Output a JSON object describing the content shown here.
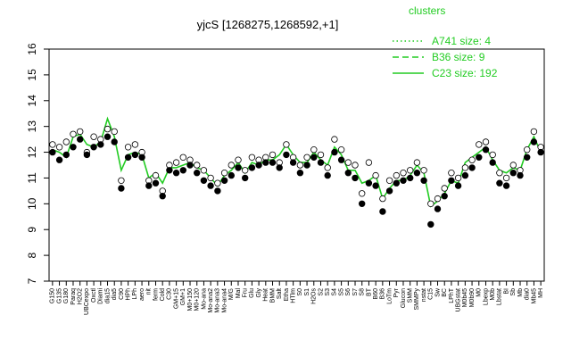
{
  "chart_data": {
    "type": "line",
    "title": "yjcS [1268275,1268592,+1]",
    "xlabel": "",
    "ylabel": "",
    "ylim": [
      7,
      16
    ],
    "yticks": [
      7,
      8,
      9,
      10,
      11,
      12,
      13,
      14,
      15,
      16
    ],
    "grid": false,
    "legend": {
      "title": "clusters",
      "placement": "top-right",
      "color": "#22cc22",
      "entries": [
        {
          "label": "A741 size: 4",
          "style": "dotted"
        },
        {
          "label": "B36 size: 9",
          "style": "dashed"
        },
        {
          "label": "C23 size: 192",
          "style": "solid"
        }
      ]
    },
    "xtick_labels": [
      "G150",
      "G135",
      "G180",
      "Paraq",
      "H2O2",
      "UBCexpo",
      "Oxctl",
      "Diami",
      "dia15",
      "dia5",
      "C90",
      "HPh",
      "LPh",
      "aero",
      "nit",
      "ferm",
      "Cold",
      "C30",
      "GM+15",
      "GM+1",
      "M0+150",
      "M0+120",
      "Mo-ana",
      "Mo-ana2",
      "Mo-ana3",
      "Mo-ana4",
      "M/G",
      "Mal",
      "Fru",
      "Glu",
      "Gly",
      "Heat",
      "BMM",
      "Salt",
      "Etha",
      "HTlm",
      "S0",
      "S1",
      "H2Os",
      "S2",
      "S3",
      "S4",
      "S5",
      "S6",
      "S7",
      "S8",
      "BT",
      "B60",
      "B36",
      "LoTm",
      "Pyr",
      "Glucon",
      "SMM",
      "SMMPy",
      "nstat",
      "C15",
      "Sw",
      "BC",
      "LPhT",
      "UBGstat",
      "M0b45",
      "M0b90",
      "M0",
      "Lbexp",
      "M0b",
      "Lbstat",
      "BI",
      "Sb",
      "Mb",
      "dia0",
      "Mb45",
      "MH"
    ],
    "series": [
      {
        "name": "C23 size: 192",
        "color": "#22cc22",
        "x": [
          1,
          2,
          3,
          4,
          5,
          6,
          7,
          8,
          9,
          10,
          11,
          12,
          13,
          14,
          15,
          16,
          17,
          18,
          19,
          20,
          21,
          22,
          23,
          24,
          25,
          26,
          27,
          28,
          29,
          30,
          31,
          32,
          33,
          34,
          35,
          36,
          37,
          38,
          39,
          40,
          41,
          42,
          43,
          44,
          45,
          46,
          47,
          48,
          49,
          50,
          51,
          52,
          53,
          54,
          55,
          56,
          57,
          58,
          59,
          60,
          61,
          62,
          63,
          64,
          65,
          66,
          67,
          68,
          69,
          70,
          71,
          72
        ],
        "y": [
          12.1,
          12.0,
          11.8,
          12.6,
          12.7,
          12.3,
          12.2,
          12.4,
          13.3,
          12.6,
          11.3,
          11.9,
          12.0,
          11.9,
          11.0,
          11.2,
          10.8,
          11.4,
          11.4,
          11.5,
          11.6,
          11.4,
          11.3,
          11.0,
          10.7,
          11.1,
          11.3,
          11.6,
          11.2,
          11.6,
          11.5,
          11.7,
          11.7,
          11.9,
          12.3,
          11.9,
          11.6,
          11.6,
          12.0,
          11.7,
          11.5,
          12.2,
          11.9,
          11.3,
          11.3,
          10.8,
          10.9,
          11.1,
          10.2,
          10.6,
          10.9,
          10.9,
          11.1,
          11.5,
          11.2,
          9.9,
          10.1,
          10.4,
          10.9,
          10.8,
          11.6,
          11.8,
          12.0,
          12.2,
          11.7,
          11.3,
          11.2,
          11.4,
          11.3,
          12.1,
          12.6,
          12.0
        ]
      }
    ],
    "points": {
      "marker": "open circles (white fill) and filled black circles",
      "x": [
        1,
        1,
        2,
        2,
        3,
        3,
        4,
        4,
        5,
        5,
        6,
        6,
        7,
        7,
        8,
        8,
        9,
        9,
        10,
        10,
        11,
        11,
        12,
        12,
        13,
        13,
        14,
        14,
        15,
        15,
        16,
        16,
        17,
        17,
        18,
        18,
        19,
        19,
        20,
        20,
        21,
        21,
        22,
        22,
        23,
        23,
        24,
        24,
        25,
        25,
        26,
        26,
        27,
        27,
        28,
        28,
        29,
        29,
        30,
        30,
        31,
        31,
        32,
        32,
        33,
        33,
        34,
        34,
        35,
        35,
        36,
        36,
        37,
        37,
        38,
        38,
        39,
        39,
        40,
        40,
        41,
        41,
        42,
        42,
        43,
        43,
        44,
        44,
        45,
        45,
        46,
        46,
        47,
        47,
        48,
        48,
        49,
        49,
        50,
        50,
        51,
        51,
        52,
        52,
        53,
        53,
        54,
        54,
        55,
        55,
        56,
        56,
        57,
        57,
        58,
        58,
        59,
        59,
        60,
        60,
        61,
        61,
        62,
        62,
        63,
        63,
        64,
        64,
        65,
        65,
        66,
        66,
        67,
        67,
        68,
        68,
        69,
        69,
        70,
        70,
        71,
        71,
        72,
        72
      ],
      "y": [
        12.3,
        12.0,
        12.2,
        11.7,
        12.4,
        11.9,
        12.7,
        12.2,
        12.8,
        12.5,
        12.0,
        11.9,
        12.6,
        12.2,
        12.5,
        12.3,
        12.9,
        12.6,
        12.8,
        12.4,
        10.9,
        10.6,
        12.2,
        11.8,
        12.3,
        11.9,
        12.0,
        11.8,
        10.9,
        10.7,
        11.1,
        10.8,
        10.5,
        10.3,
        11.5,
        11.3,
        11.6,
        11.2,
        11.8,
        11.3,
        11.7,
        11.5,
        11.5,
        11.2,
        11.3,
        10.9,
        11.0,
        10.7,
        10.8,
        10.5,
        11.2,
        10.9,
        11.5,
        11.1,
        11.7,
        11.4,
        11.3,
        11.0,
        11.8,
        11.4,
        11.7,
        11.5,
        11.8,
        11.6,
        11.9,
        11.6,
        11.6,
        11.4,
        12.3,
        11.9,
        11.8,
        11.6,
        11.5,
        11.2,
        11.8,
        11.5,
        12.1,
        11.8,
        11.9,
        11.6,
        11.4,
        11.1,
        12.5,
        12.0,
        12.1,
        11.7,
        11.6,
        11.2,
        11.5,
        11.0,
        10.4,
        10.0,
        11.6,
        10.8,
        11.1,
        10.7,
        10.2,
        9.7,
        10.9,
        10.5,
        11.1,
        10.8,
        11.2,
        10.9,
        11.3,
        11.0,
        11.6,
        11.2,
        11.3,
        10.9,
        10.0,
        9.2,
        10.2,
        9.8,
        10.6,
        10.3,
        11.2,
        10.9,
        11.0,
        10.7,
        11.4,
        11.1,
        11.7,
        11.4,
        12.3,
        11.8,
        12.4,
        12.1,
        11.9,
        11.6,
        11.2,
        10.8,
        11.0,
        10.7,
        11.5,
        11.2,
        11.3,
        11.1,
        12.1,
        11.8,
        12.8,
        12.4,
        12.2,
        12.0
      ]
    }
  }
}
